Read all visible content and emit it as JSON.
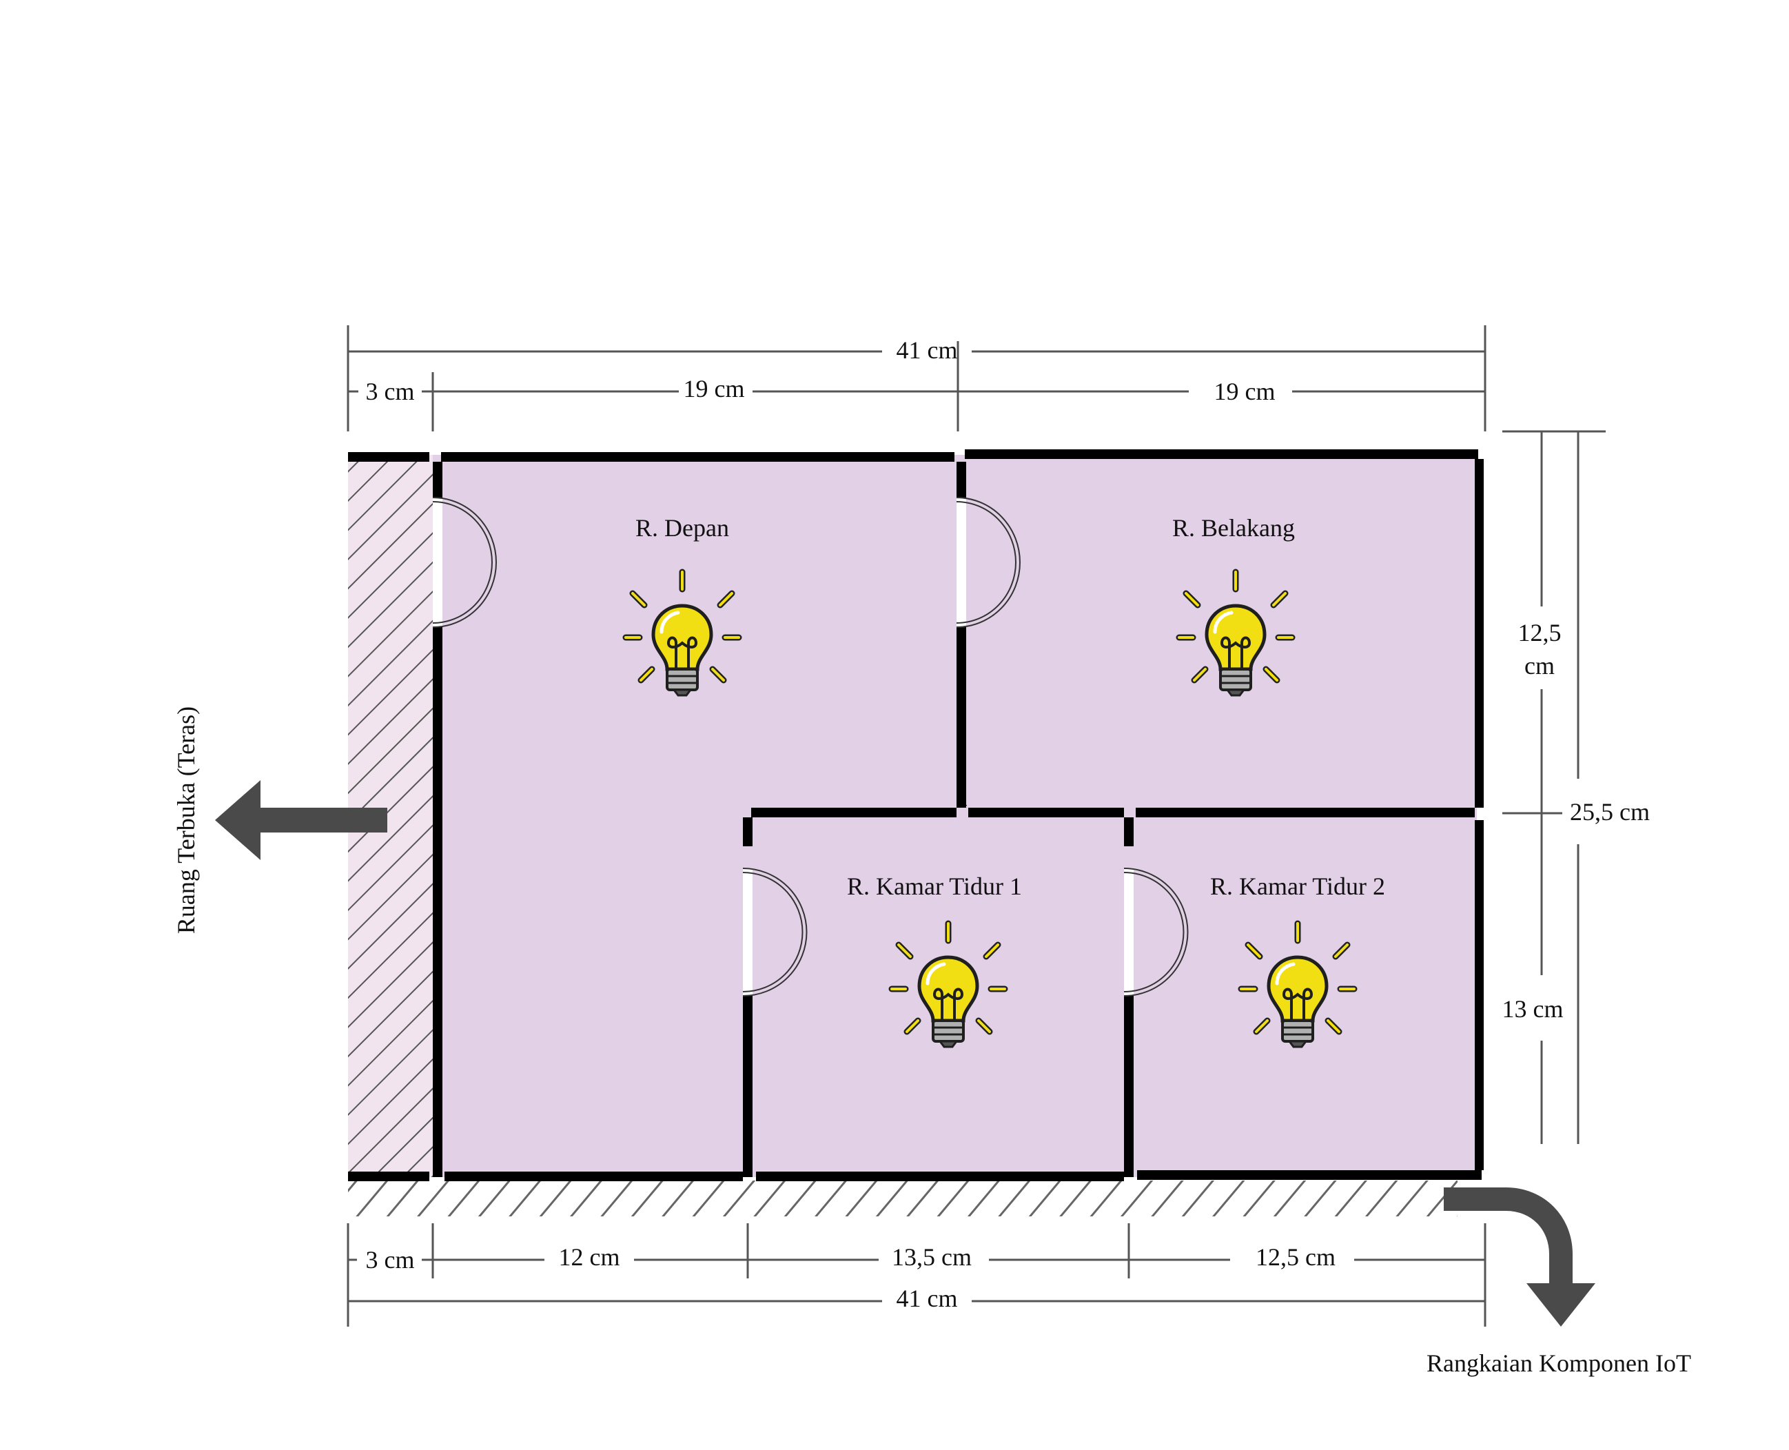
{
  "dimensions": {
    "top_total": "41 cm",
    "top_left": "3 cm",
    "top_mid": "19 cm",
    "top_right": "19 cm",
    "right_upper": "12,5\ncm",
    "right_upper_a": "12,5",
    "right_upper_b": "cm",
    "right_lower": "13 cm",
    "right_total": "25,5 cm",
    "bottom_left": "3 cm",
    "bottom_a": "12 cm",
    "bottom_b": "13,5 cm",
    "bottom_c": "12,5 cm",
    "bottom_total": "41 cm"
  },
  "rooms": {
    "front": "R. Depan",
    "back": "R. Belakang",
    "bed1": "R. Kamar Tidur 1",
    "bed2": "R. Kamar Tidur 2"
  },
  "annotations": {
    "terrace": "Ruang Terbuka (Teras)",
    "iot": "Rangkaian Komponen IoT"
  },
  "colors": {
    "floor": "#e2d0e6",
    "terrace_fill": "#f1e4ef",
    "hatch": "#555555",
    "wall": "#000000",
    "bulb": "#f2df13",
    "arrow": "#4a4a4a"
  },
  "icons": [
    "lightbulb-icon",
    "arrow-left-icon",
    "arrow-down-right-icon",
    "door-icon"
  ]
}
